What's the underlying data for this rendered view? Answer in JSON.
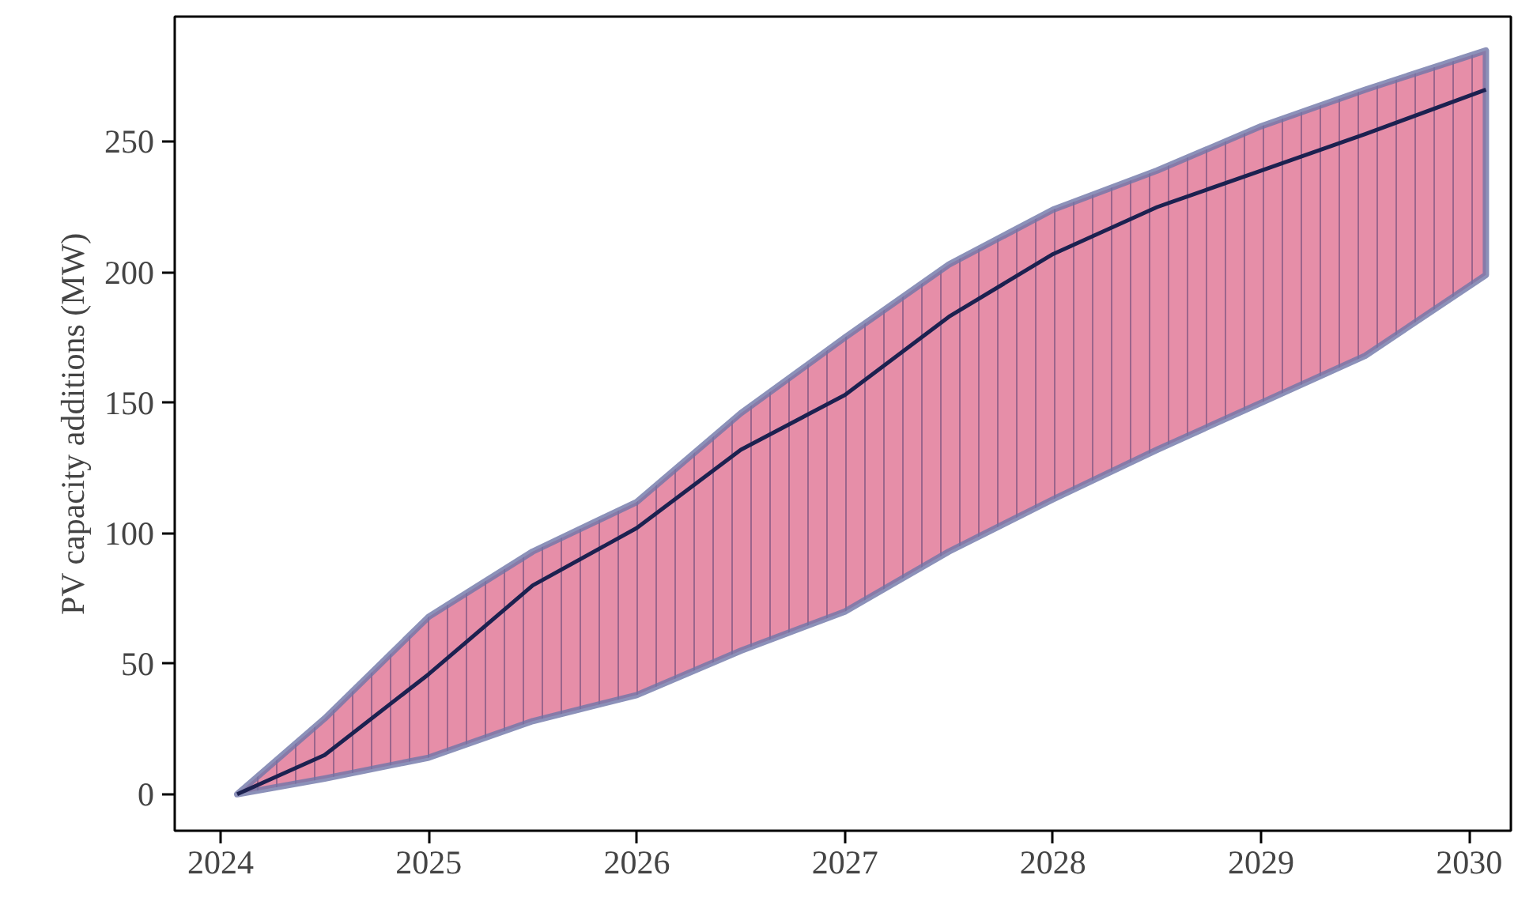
{
  "chart_data": {
    "type": "line",
    "ylabel": "PV capacity additions (MW)",
    "x": [
      2024.08,
      2024.5,
      2025,
      2025.5,
      2026,
      2026.5,
      2027,
      2027.5,
      2028,
      2028.5,
      2029,
      2029.5,
      2030.08
    ],
    "series": [
      {
        "color": "#1c2150",
        "values": [
          0,
          15,
          46,
          80,
          102,
          132,
          153,
          183,
          207,
          225,
          239,
          253,
          270
        ],
        "lower": [
          0,
          6,
          14,
          28,
          38,
          55,
          70,
          93,
          113,
          132,
          150,
          168,
          199
        ],
        "upper": [
          0,
          29,
          68,
          93,
          112,
          146,
          175,
          203,
          224,
          239,
          256,
          270,
          285
        ]
      }
    ],
    "xlim": [
      2023.78,
      2030.2
    ],
    "ylim": [
      -14,
      298
    ],
    "xticks": [
      2024,
      2025,
      2026,
      2027,
      2028,
      2029,
      2030
    ],
    "yticks": [
      0,
      50,
      100,
      150,
      200,
      250
    ],
    "grid": false,
    "marker": "none",
    "line_style": "solid"
  }
}
